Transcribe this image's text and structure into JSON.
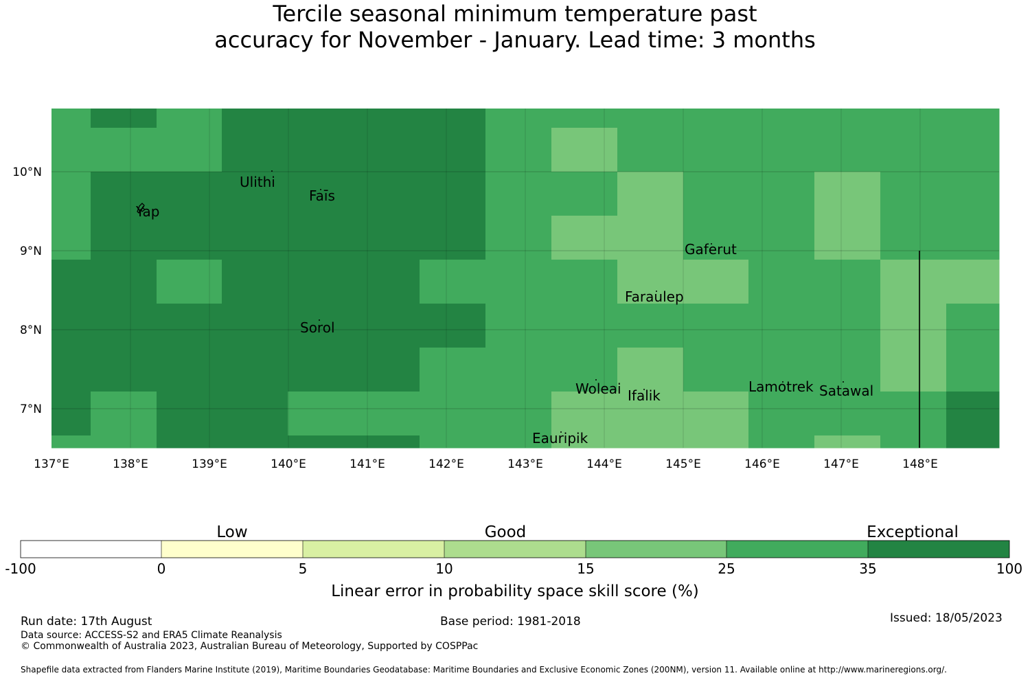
{
  "title": {
    "line1": "Tercile seasonal minimum temperature past",
    "line2": "accuracy for November - January. Lead time: 3 months"
  },
  "map": {
    "lon_labels": [
      "137°E",
      "138°E",
      "139°E",
      "140°E",
      "141°E",
      "142°E",
      "143°E",
      "144°E",
      "145°E",
      "146°E",
      "147°E",
      "148°E"
    ],
    "lat_labels": [
      "10°N",
      "9°N",
      "8°N",
      "7°N"
    ],
    "lon_range": [
      137,
      149
    ],
    "lat_range": [
      6.5,
      10.8
    ],
    "grid_lines": true,
    "places": [
      {
        "name": "Ulithi"
      },
      {
        "name": "Faīs"
      },
      {
        "name": "Yap"
      },
      {
        "name": "Gaferut"
      },
      {
        "name": "Faraulep"
      },
      {
        "name": "Sorol"
      },
      {
        "name": "Woleai"
      },
      {
        "name": "Ifalik"
      },
      {
        "name": "Lamotrek"
      },
      {
        "name": "Satawal"
      },
      {
        "name": "Eauripik"
      }
    ],
    "skill_classes": [
      "#ffffff",
      "#ffffcc",
      "#d9f0a3",
      "#addd8e",
      "#78c679",
      "#41ab5d",
      "#238443"
    ]
  },
  "colorbar": {
    "categories": [
      "Low",
      "Good",
      "Exceptional"
    ],
    "ticks": [
      "-100",
      "0",
      "5",
      "10",
      "15",
      "25",
      "35",
      "100"
    ],
    "colors": [
      "#ffffff",
      "#ffffcc",
      "#d9f0a3",
      "#addd8e",
      "#78c679",
      "#41ab5d",
      "#238443"
    ],
    "label": "Linear error in probability space skill score (%)"
  },
  "footer": {
    "run_date": "Run date: 17th August",
    "base_period": "Base period: 1981-2018",
    "issued": "Issued: 18/05/2023",
    "data_source": "Data source: ACCESS-S2 and ERA5 Climate Reanalysis",
    "copyright": "© Commonwealth of Australia 2023, Australian Bureau of Meteorology, Supported by COSPPac",
    "shapefile": "Shapefile data extracted from Flanders Marine Institute (2019), Maritime Boundaries Geodatabase: Maritime Boundaries and Exclusive Economic Zones (200NM), version 11. Available online at http://www.marineregions.org/."
  }
}
